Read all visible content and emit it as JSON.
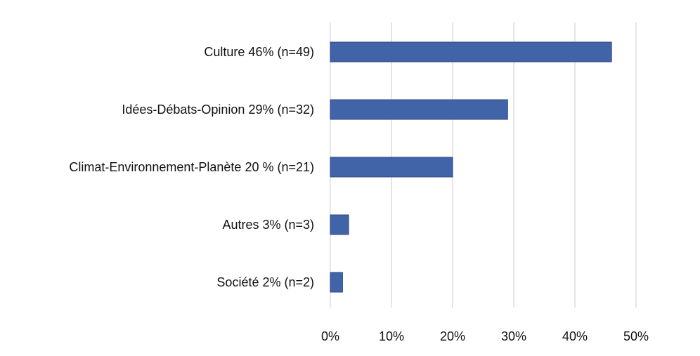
{
  "chart_data": {
    "type": "bar",
    "orientation": "horizontal",
    "categories": [
      "Culture 46% (n=49)",
      "Idées-Débats-Opinion 29% (n=32)",
      "Climat-Environnement-Planète 20 % (n=21)",
      "Autres 3% (n=3)",
      "Société 2% (n=2)"
    ],
    "values": [
      46,
      29,
      20,
      3,
      2
    ],
    "value_unit": "%",
    "xlim": [
      0,
      50
    ],
    "xticks": [
      0,
      10,
      20,
      30,
      40,
      50
    ],
    "xtick_labels": [
      "0%",
      "10%",
      "20%",
      "30%",
      "40%",
      "50%"
    ],
    "title": "",
    "xlabel": "",
    "ylabel": "",
    "grid": "vertical",
    "legend": "none",
    "bar_color": "#4163a8"
  }
}
